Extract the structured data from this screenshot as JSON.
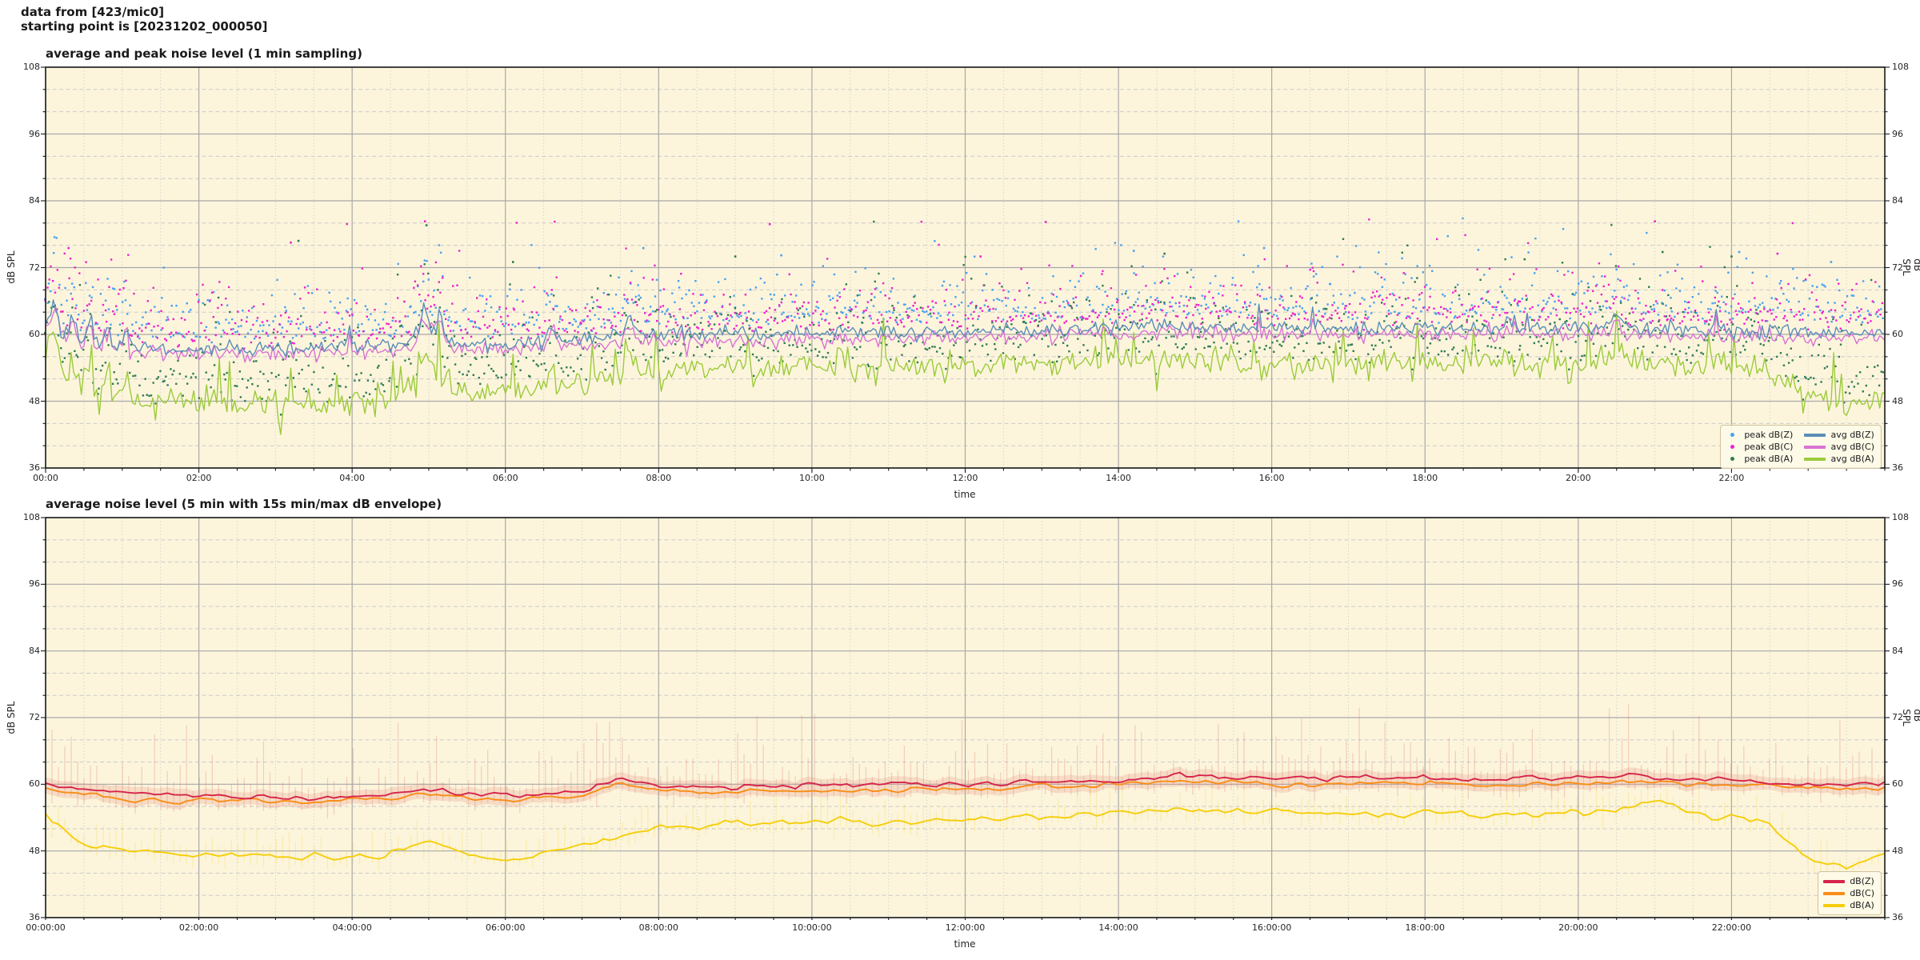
{
  "header": {
    "line1": "data from [423/mic0]",
    "line2": "starting point is [20231202_000050]"
  },
  "colors": {
    "plot_bg": "#FCF5DC",
    "grid_major": "#a8a8a8",
    "grid_minor_h": "#c4c4c4",
    "grid_minor_v": "#d2d2cc",
    "spine": "#1a1a1a",
    "peak_z": "#4aa0ee",
    "peak_c": "#ee22cc",
    "peak_a": "#2f7d53",
    "avg_z": "#5b8db8",
    "avg_c": "#d972d4",
    "avg_a": "#9ccb3b",
    "db_z": "#d6244a",
    "db_c": "#f98d17",
    "db_a": "#f5ce0a",
    "env_pink": "rgba(224,120,110,0.30)",
    "env_pink_band": "rgba(228,130,118,0.22)",
    "env_yellow": "rgba(246,210,40,0.25)"
  },
  "chart_data": [
    {
      "type": "line",
      "title": "average and peak noise level (1 min sampling)",
      "xlabel": "time",
      "ylabel_left": "dB SPL",
      "ylabel_right": "dB SPL",
      "xlim_hours": [
        0,
        24
      ],
      "ylim": [
        36,
        108
      ],
      "y_major_ticks": [
        108,
        96,
        84,
        72,
        60,
        48,
        36
      ],
      "y_minor_step": 4,
      "x_major_ticks_hours": [
        0,
        2,
        4,
        6,
        8,
        10,
        12,
        14,
        16,
        18,
        20,
        22
      ],
      "x_major_labels": [
        "00:00",
        "02:00",
        "04:00",
        "06:00",
        "08:00",
        "10:00",
        "12:00",
        "14:00",
        "16:00",
        "18:00",
        "20:00",
        "22:00"
      ],
      "x_minor_step_hours": 0.5,
      "grid": true,
      "anchor_step_hours": 0.5,
      "series": [
        {
          "name": "avg dB(Z)",
          "kind": "line",
          "color_key": "avg_z",
          "noise_sigma": 0.65,
          "spike_amp": 3.6,
          "anchors": [
            62.5,
            58.2,
            58.0,
            57.6,
            57.4,
            57.5,
            57.4,
            57.6,
            57.8,
            58.0,
            59.5,
            58.3,
            58.2,
            58.6,
            59.2,
            59.8,
            60.0,
            59.8,
            59.9,
            60.1,
            60.3,
            60.2,
            60.4,
            60.3,
            60.4,
            60.6,
            60.8,
            61.0,
            61.2,
            61.4,
            61.3,
            61.2,
            61.0,
            60.9,
            61.0,
            61.1,
            61.3,
            61.2,
            61.0,
            61.1,
            61.3,
            61.2,
            61.0,
            60.8,
            60.6,
            60.5,
            60.4,
            60.3,
            60.5
          ]
        },
        {
          "name": "avg dB(C)",
          "kind": "line",
          "color_key": "avg_c",
          "noise_sigma": 0.7,
          "spike_amp": 3.4,
          "anchors": [
            61.5,
            57.1,
            56.9,
            56.5,
            56.3,
            56.4,
            56.3,
            56.5,
            56.7,
            56.9,
            58.6,
            57.2,
            57.1,
            57.5,
            58.1,
            58.7,
            58.9,
            58.7,
            58.8,
            59.0,
            59.2,
            59.1,
            59.3,
            59.2,
            59.3,
            59.5,
            59.7,
            59.9,
            60.1,
            60.3,
            60.2,
            60.1,
            59.9,
            59.8,
            59.9,
            60.0,
            60.2,
            60.1,
            59.9,
            60.0,
            60.2,
            60.1,
            59.9,
            59.7,
            59.5,
            59.4,
            59.3,
            59.2,
            59.4
          ]
        },
        {
          "name": "avg dB(A)",
          "kind": "line",
          "color_key": "avg_a",
          "noise_sigma": 1.15,
          "spike_amp": 6.0,
          "anchors": [
            56.0,
            50.0,
            48.5,
            48.0,
            48.2,
            47.8,
            47.5,
            47.8,
            48.2,
            48.5,
            51.5,
            49.5,
            49.8,
            50.5,
            51.5,
            52.5,
            53.5,
            53.8,
            54.0,
            53.8,
            54.2,
            54.0,
            53.8,
            54.0,
            54.5,
            54.8,
            55.0,
            55.2,
            55.5,
            55.8,
            55.5,
            55.2,
            55.0,
            54.8,
            54.6,
            54.8,
            55.0,
            54.8,
            54.5,
            54.6,
            54.8,
            55.2,
            55.0,
            54.5,
            54.0,
            53.0,
            49.5,
            46.5,
            48.5
          ]
        },
        {
          "name": "peak dB(Z)",
          "kind": "scatter",
          "color_key": "peak_z",
          "base": "avg dB(Z)",
          "offset": 2.2,
          "spread": 2.9,
          "outliers": [
            [
              7.8,
              75.5
            ],
            [
              14.2,
              75.0
            ],
            [
              15.9,
              75.5
            ],
            [
              22.1,
              74.8
            ],
            [
              23.3,
              73.0
            ],
            [
              9.6,
              74.2
            ]
          ]
        },
        {
          "name": "peak dB(C)",
          "kind": "scatter",
          "color_key": "peak_c",
          "base": "avg dB(C)",
          "offset": 2.2,
          "spread": 3.1,
          "outliers": [
            [
              0.3,
              75.5
            ],
            [
              3.2,
              76.5
            ],
            [
              4.95,
              80.3
            ],
            [
              9.45,
              79.8
            ],
            [
              12.2,
              74.0
            ],
            [
              13.05,
              80.2
            ],
            [
              21.0,
              80.3
            ],
            [
              22.6,
              74.5
            ]
          ]
        },
        {
          "name": "peak dB(A)",
          "kind": "scatter",
          "color_key": "peak_a",
          "base": "avg dB(A)",
          "offset": 1.8,
          "spread": 3.3,
          "outliers": [
            [
              3.3,
              76.8
            ],
            [
              4.97,
              79.6
            ],
            [
              6.1,
              73.0
            ],
            [
              9.0,
              74.0
            ],
            [
              14.6,
              74.5
            ],
            [
              19.3,
              73.5
            ],
            [
              21.1,
              74.8
            ],
            [
              22.0,
              74.0
            ]
          ]
        }
      ],
      "spike_events": [
        {
          "t": 0.12,
          "halfwidth": 0.06,
          "amp": 4.5
        },
        {
          "t": 0.35,
          "halfwidth": 0.05,
          "amp": 4.0
        },
        {
          "t": 0.55,
          "halfwidth": 0.05,
          "amp": 4.5
        },
        {
          "t": 0.8,
          "halfwidth": 0.05,
          "amp": 4.2
        },
        {
          "t": 1.05,
          "halfwidth": 0.05,
          "amp": 4.0
        },
        {
          "t": 4.95,
          "halfwidth": 0.1,
          "amp": 4.8
        },
        {
          "t": 5.15,
          "halfwidth": 0.08,
          "amp": 4.2
        },
        {
          "t": 6.6,
          "halfwidth": 0.06,
          "amp": 3.5
        },
        {
          "t": 7.62,
          "halfwidth": 0.07,
          "amp": 3.8
        },
        {
          "t": 20.5,
          "halfwidth": 0.06,
          "amp": 2.8
        }
      ],
      "legend": {
        "position": "lower right",
        "scatter_entries": [
          {
            "label": "peak dB(Z)",
            "color_key": "peak_z"
          },
          {
            "label": "peak dB(C)",
            "color_key": "peak_c"
          },
          {
            "label": "peak dB(A)",
            "color_key": "peak_a"
          }
        ],
        "line_entries": [
          {
            "label": "avg dB(Z)",
            "color_key": "avg_z"
          },
          {
            "label": "avg dB(C)",
            "color_key": "avg_c"
          },
          {
            "label": "avg dB(A)",
            "color_key": "avg_a"
          }
        ]
      }
    },
    {
      "type": "line",
      "title": "average noise level (5 min with 15s min/max dB envelope)",
      "xlabel": "time",
      "ylabel_left": "dB SPL",
      "ylabel_right": "dB SPL",
      "xlim_hours": [
        0,
        24
      ],
      "ylim": [
        36,
        108
      ],
      "y_major_ticks": [
        108,
        96,
        84,
        72,
        60,
        48,
        36
      ],
      "y_minor_step": 4,
      "x_major_ticks_hours": [
        0,
        2,
        4,
        6,
        8,
        10,
        12,
        14,
        16,
        18,
        20,
        22
      ],
      "x_major_labels": [
        "00:00:00",
        "02:00:00",
        "04:00:00",
        "06:00:00",
        "08:00:00",
        "10:00:00",
        "12:00:00",
        "14:00:00",
        "16:00:00",
        "18:00:00",
        "20:00:00",
        "22:00:00"
      ],
      "x_minor_step_hours": 0.5,
      "grid": true,
      "anchor_step_hours": 0.5,
      "sample_minutes": 5,
      "series": [
        {
          "name": "dB(Z)",
          "kind": "line",
          "color_key": "db_z",
          "noise_sigma": 0.4,
          "envelope": {
            "color_key": "env_pink",
            "max_extra": 3.4,
            "max_cap": 12.5,
            "min_extra": 0.9
          },
          "anchors": [
            60.0,
            58.8,
            58.3,
            58.0,
            58.2,
            57.8,
            57.6,
            57.7,
            57.9,
            58.0,
            59.3,
            58.1,
            58.0,
            58.3,
            58.8,
            61.3,
            59.6,
            59.4,
            59.5,
            59.7,
            59.9,
            59.8,
            60.0,
            59.9,
            60.0,
            60.2,
            60.4,
            60.6,
            60.9,
            61.2,
            61.4,
            61.2,
            61.0,
            60.9,
            61.0,
            61.1,
            61.2,
            61.1,
            60.9,
            61.0,
            61.2,
            61.6,
            61.2,
            60.9,
            60.6,
            60.3,
            60.0,
            59.8,
            60.2
          ]
        },
        {
          "name": "dB(C)",
          "kind": "line",
          "color_key": "db_c",
          "noise_sigma": 0.38,
          "anchors": [
            59.2,
            58.0,
            57.5,
            57.2,
            57.3,
            57.0,
            56.8,
            56.9,
            57.1,
            57.2,
            58.4,
            57.3,
            57.2,
            57.5,
            58.0,
            60.3,
            58.7,
            58.5,
            58.6,
            58.8,
            59.0,
            58.9,
            59.1,
            59.0,
            59.1,
            59.3,
            59.5,
            59.7,
            60.0,
            60.3,
            60.5,
            60.3,
            60.1,
            60.0,
            60.1,
            60.2,
            60.3,
            60.2,
            60.0,
            60.1,
            60.3,
            60.7,
            60.3,
            60.0,
            59.8,
            59.5,
            59.2,
            59.0,
            59.4
          ]
        },
        {
          "name": "dB(A)",
          "kind": "line",
          "color_key": "db_a",
          "noise_sigma": 0.5,
          "envelope": {
            "color_key": "env_yellow",
            "max_extra": 1.5,
            "max_cap": 4.5,
            "min_extra": 1.0
          },
          "anchors": [
            54.5,
            49.0,
            48.3,
            47.8,
            47.2,
            47.0,
            46.6,
            46.8,
            47.2,
            47.5,
            50.0,
            47.3,
            46.8,
            47.5,
            49.0,
            51.0,
            52.3,
            52.6,
            53.0,
            52.8,
            53.4,
            53.2,
            53.0,
            53.2,
            53.6,
            53.9,
            54.2,
            54.5,
            55.0,
            55.4,
            55.2,
            55.0,
            55.3,
            54.7,
            54.5,
            54.7,
            55.0,
            54.8,
            54.4,
            54.6,
            54.9,
            55.6,
            56.8,
            54.8,
            54.2,
            53.0,
            46.5,
            44.5,
            48.0
          ]
        }
      ],
      "legend": {
        "position": "lower right",
        "line_entries": [
          {
            "label": "dB(Z)",
            "color_key": "db_z"
          },
          {
            "label": "dB(C)",
            "color_key": "db_c"
          },
          {
            "label": "dB(A)",
            "color_key": "db_a"
          }
        ]
      }
    }
  ],
  "render_seed": 42
}
